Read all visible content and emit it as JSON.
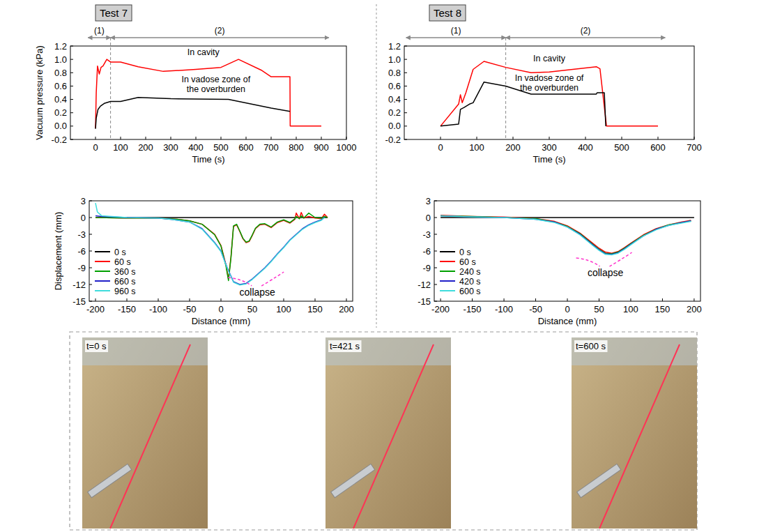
{
  "chart_data": [
    {
      "type": "line",
      "title": "Test 7",
      "xlabel": "Time (s)",
      "ylabel": "Vacuum pressure (kPa)",
      "xlim": [
        -100,
        1000
      ],
      "ylim": [
        -0.2,
        1.2
      ],
      "xticks": [
        0,
        100,
        200,
        300,
        400,
        500,
        600,
        700,
        800,
        900,
        1000
      ],
      "yticks": [
        -0.2,
        {
          "value": 0,
          "label": "0.0"
        },
        0.2,
        0.4,
        0.6,
        0.8,
        {
          "value": 1,
          "label": "1.0"
        },
        1.2
      ],
      "grid": false,
      "phases": [
        {
          "label": "(1)",
          "start": -30,
          "end": 60
        },
        {
          "label": "(2)",
          "start": 60,
          "end": 930
        }
      ],
      "series": [
        {
          "name": "In cavity",
          "color": "#ff0000",
          "label_at": [
            430,
            1.06
          ],
          "x": [
            0,
            3,
            8,
            15,
            22,
            30,
            45,
            60,
            100,
            170,
            270,
            400,
            500,
            570,
            660,
            700,
            775,
            776,
            900
          ],
          "values": [
            -0.03,
            0.5,
            0.9,
            0.78,
            0.88,
            0.9,
            1.0,
            0.96,
            0.96,
            0.89,
            0.82,
            0.85,
            0.88,
            1.0,
            0.84,
            0.74,
            0.74,
            0,
            0
          ]
        },
        {
          "name": "In vadose zone of the overburden",
          "color": "#000000",
          "label_at": [
            480,
            0.66
          ],
          "x": [
            0,
            3,
            10,
            20,
            35,
            60,
            100,
            170,
            300,
            530,
            700,
            775
          ],
          "values": [
            -0.04,
            0.12,
            0.25,
            0.3,
            0.34,
            0.37,
            0.37,
            0.43,
            0.41,
            0.4,
            0.27,
            0.22
          ]
        }
      ]
    },
    {
      "type": "line",
      "title": "Test 8",
      "xlabel": "Time (s)",
      "xlim": [
        -100,
        700
      ],
      "ylim": [
        -0.2,
        1.2
      ],
      "xticks": [
        0,
        100,
        200,
        300,
        400,
        500,
        600,
        700
      ],
      "yticks": [
        -0.2,
        {
          "value": 0,
          "label": "0.0"
        },
        0.2,
        0.4,
        0.6,
        0.8,
        {
          "value": 1,
          "label": "1.0"
        },
        1.2
      ],
      "grid": false,
      "phases": [
        {
          "label": "(1)",
          "start": -95,
          "end": 180
        },
        {
          "label": "(2)",
          "start": 180,
          "end": 620
        }
      ],
      "series": [
        {
          "name": "In cavity",
          "color": "#ff0000",
          "label_at": [
            300,
            0.97
          ],
          "x": [
            0,
            50,
            55,
            60,
            70,
            90,
            120,
            180,
            250,
            300,
            430,
            440,
            458,
            600
          ],
          "values": [
            0,
            0.33,
            0.47,
            0.35,
            0.5,
            0.85,
            0.97,
            0.88,
            0.8,
            0.81,
            0.89,
            0.86,
            0,
            0
          ]
        },
        {
          "name": "In vadose zone of the overburden",
          "color": "#000000",
          "label_at": [
            300,
            0.68
          ],
          "x": [
            0,
            50,
            55,
            65,
            80,
            90,
            120,
            180,
            250,
            430,
            432,
            452,
            456
          ],
          "values": [
            0,
            0.03,
            0.25,
            0.28,
            0.33,
            0.35,
            0.66,
            0.6,
            0.48,
            0.48,
            0.5,
            0.5,
            0
          ]
        }
      ]
    },
    {
      "type": "line",
      "xlabel": "Distance (mm)",
      "ylabel": "Displacement (mm)",
      "xlim": [
        -210,
        210
      ],
      "ylim": [
        -15,
        3
      ],
      "xticks": [
        -200,
        -150,
        -100,
        -50,
        0,
        50,
        100,
        150,
        200
      ],
      "yticks": [
        3,
        0,
        -3,
        -6,
        -9,
        -12,
        -15
      ],
      "grid": false,
      "legend": "lower left",
      "annotation": {
        "text": "collapse",
        "x": 58,
        "y": -14
      },
      "series": [
        {
          "name": "0 s",
          "color": "#000000",
          "x": [
            -200,
            170
          ],
          "values": [
            0,
            0
          ]
        },
        {
          "name": "60 s",
          "color": "#ff0000",
          "x": [
            -200,
            -150,
            -100,
            -70,
            -50,
            -30,
            -10,
            0,
            8,
            12,
            16,
            20,
            25,
            30,
            35,
            40,
            45,
            50,
            55,
            62,
            70,
            80,
            90,
            100,
            110,
            118,
            120,
            125,
            128,
            132,
            140,
            150,
            160,
            165,
            170
          ],
          "values": [
            0,
            -0.1,
            -0.1,
            -0.3,
            -0.6,
            -1.2,
            -3,
            -5,
            -8.5,
            -11,
            -7,
            -1.6,
            -1.3,
            -2.5,
            -3.8,
            -4.5,
            -4.3,
            -3.2,
            -2,
            -1.3,
            -1.2,
            -1.8,
            -0.9,
            -0.5,
            -1,
            -0.3,
            0.8,
            -0.2,
            0.9,
            -0.1,
            0.2,
            -0.1,
            -0.2,
            0.6,
            0
          ]
        },
        {
          "name": "360 s",
          "color": "#00a000",
          "x": [
            -200,
            -150,
            -100,
            -70,
            -50,
            -30,
            -10,
            0,
            8,
            12,
            16,
            20,
            25,
            30,
            35,
            40,
            45,
            50,
            55,
            62,
            70,
            80,
            90,
            100,
            110,
            118,
            120,
            125,
            128,
            132,
            140,
            150,
            160,
            165,
            170
          ],
          "values": [
            0,
            -0.1,
            -0.1,
            -0.3,
            -0.6,
            -1.2,
            -3.1,
            -5.1,
            -8.7,
            -11.3,
            -7.2,
            -1.5,
            -1.2,
            -2.4,
            -3.7,
            -4.4,
            -4.2,
            -3.1,
            -1.9,
            -1.2,
            -1.1,
            -1.7,
            -0.8,
            -0.4,
            -0.9,
            -0.2,
            0.2,
            -0.2,
            0.3,
            -0.1,
            0.8,
            0,
            -0.1,
            0.2,
            0
          ]
        },
        {
          "name": "660 s",
          "color": "#2020c8",
          "x": [
            -200,
            -190,
            -150,
            -100,
            -80,
            -50,
            -30,
            -10,
            0,
            10,
            20,
            30,
            40,
            50,
            60,
            70,
            80,
            90,
            100,
            110,
            120,
            130,
            140,
            150,
            160,
            165
          ],
          "values": [
            0.3,
            0.2,
            0,
            -0.1,
            -0.3,
            -0.8,
            -2,
            -4.5,
            -6,
            -9,
            -11.5,
            -12,
            -11.8,
            -11,
            -10,
            -9,
            -7.8,
            -6.5,
            -5.3,
            -4,
            -3,
            -2,
            -1.3,
            -0.8,
            -0.4,
            0
          ]
        },
        {
          "name": "960 s",
          "color": "#3fdcdc",
          "x": [
            -200,
            -197,
            -190,
            -150,
            -100,
            -80,
            -50,
            -30,
            -10,
            0,
            10,
            20,
            30,
            40,
            50,
            60,
            70,
            80,
            90,
            100,
            110,
            120,
            130,
            140,
            150,
            160,
            165
          ],
          "values": [
            2.6,
            1,
            0.3,
            0,
            -0.1,
            -0.3,
            -0.8,
            -2.1,
            -4.6,
            -6.1,
            -9.1,
            -11.6,
            -12.1,
            -11.9,
            -11.1,
            -10.1,
            -9.1,
            -7.9,
            -6.6,
            -5.4,
            -4.1,
            -3.1,
            -2.1,
            -1.4,
            -0.9,
            -0.5,
            0
          ]
        }
      ]
    },
    {
      "type": "line",
      "xlabel": "Distance (mm)",
      "xlim": [
        -210,
        210
      ],
      "ylim": [
        -15,
        3
      ],
      "xticks": [
        -200,
        -150,
        -100,
        -50,
        0,
        50,
        100,
        150,
        200
      ],
      "yticks": [
        3,
        0,
        -3,
        -6,
        -9,
        -12,
        -15
      ],
      "grid": false,
      "legend": "lower left",
      "annotation": {
        "text": "collapse",
        "x": 60,
        "y": -10.5
      },
      "series": [
        {
          "name": "0 s",
          "color": "#000000",
          "x": [
            -200,
            200
          ],
          "values": [
            0,
            0
          ]
        },
        {
          "name": "60 s",
          "color": "#ff0000",
          "x": [
            -200,
            -150,
            -100,
            -50,
            -20,
            0,
            20,
            40,
            50,
            60,
            70,
            80,
            90,
            100,
            120,
            140,
            160,
            180,
            195
          ],
          "values": [
            0.4,
            0.2,
            0.1,
            -0.2,
            -0.7,
            -1.5,
            -2.8,
            -4.6,
            -5.5,
            -6.2,
            -6.4,
            -6.1,
            -5.4,
            -4.6,
            -3.1,
            -2,
            -1.3,
            -0.8,
            -0.5
          ]
        },
        {
          "name": "240 s",
          "color": "#00a000",
          "x": [
            -200,
            -150,
            -100,
            -50,
            -20,
            0,
            20,
            40,
            50,
            60,
            70,
            80,
            90,
            100,
            120,
            140,
            160,
            180,
            195
          ],
          "values": [
            0.3,
            0.2,
            0,
            -0.2,
            -0.8,
            -1.6,
            -2.9,
            -4.8,
            -5.7,
            -6.4,
            -6.5,
            -6.2,
            -5.5,
            -4.7,
            -3.2,
            -2.1,
            -1.3,
            -0.9,
            -0.6
          ]
        },
        {
          "name": "420 s",
          "color": "#2020c8",
          "x": [
            -200,
            -150,
            -100,
            -50,
            -20,
            0,
            20,
            40,
            50,
            60,
            70,
            80,
            90,
            100,
            120,
            140,
            160,
            180,
            195
          ],
          "values": [
            0.3,
            0.1,
            0,
            -0.3,
            -0.8,
            -1.7,
            -3,
            -4.9,
            -5.8,
            -6.5,
            -6.6,
            -6.3,
            -5.6,
            -4.8,
            -3.3,
            -2.1,
            -1.4,
            -0.9,
            -0.6
          ]
        },
        {
          "name": "600 s",
          "color": "#3fdcdc",
          "x": [
            -200,
            -150,
            -100,
            -50,
            -20,
            0,
            20,
            40,
            50,
            60,
            70,
            80,
            90,
            100,
            120,
            140,
            160,
            180,
            195
          ],
          "values": [
            0.3,
            0.1,
            0,
            -0.3,
            -0.9,
            -1.7,
            -3.1,
            -5,
            -5.9,
            -6.6,
            -6.7,
            -6.4,
            -5.7,
            -4.9,
            -3.3,
            -2.2,
            -1.4,
            -1,
            -0.7
          ]
        }
      ]
    }
  ],
  "photos": [
    {
      "label": "t=0 s"
    },
    {
      "label": "t=421 s"
    },
    {
      "label": "t=600 s"
    }
  ]
}
